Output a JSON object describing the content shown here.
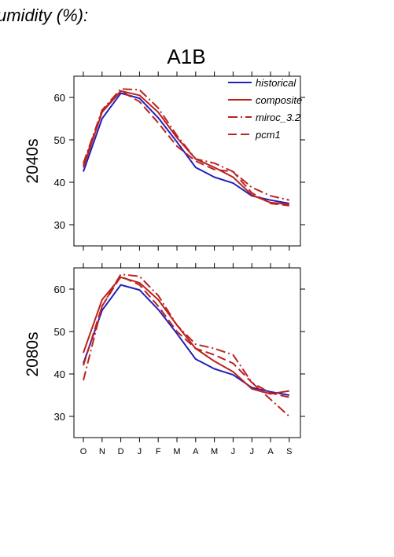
{
  "header": {
    "cut_title": "umidity (%):",
    "scenario_title": "A1B"
  },
  "colors": {
    "historical": "#2222bb",
    "scenario": "#bb2222",
    "axis": "#000000"
  },
  "chart_data": [
    {
      "type": "line",
      "panel_label": "2040s",
      "categories": [
        "O",
        "N",
        "D",
        "J",
        "F",
        "M",
        "A",
        "M",
        "J",
        "J",
        "A",
        "S"
      ],
      "yticks": [
        30,
        40,
        50,
        60
      ],
      "ylim": [
        25,
        65
      ],
      "legend": {
        "placement": "top-right",
        "entries": [
          "historical",
          "composite",
          "miroc_3.2",
          "pcm1"
        ]
      },
      "series": [
        {
          "name": "historical",
          "style": "solid",
          "color": "#2222bb",
          "values": [
            42.5,
            55.0,
            61.0,
            59.8,
            55.2,
            49.5,
            43.5,
            41.2,
            39.8,
            36.8,
            35.8,
            35.0
          ]
        },
        {
          "name": "composite",
          "style": "solid",
          "color": "#bb2222",
          "values": [
            43.5,
            56.5,
            61.5,
            60.5,
            56.5,
            50.5,
            45.5,
            43.5,
            41.2,
            37.0,
            35.2,
            34.8
          ]
        },
        {
          "name": "miroc_3.2",
          "style": "dashdot",
          "color": "#bb2222",
          "values": [
            44.5,
            57.0,
            62.0,
            61.8,
            57.5,
            51.0,
            45.5,
            44.5,
            42.5,
            38.8,
            36.8,
            35.8
          ]
        },
        {
          "name": "pcm1",
          "style": "longdash",
          "color": "#bb2222",
          "values": [
            44.0,
            56.8,
            61.5,
            59.0,
            54.0,
            48.5,
            45.0,
            43.0,
            42.5,
            37.5,
            35.0,
            34.5
          ]
        }
      ]
    },
    {
      "type": "line",
      "panel_label": "2080s",
      "categories": [
        "O",
        "N",
        "D",
        "J",
        "F",
        "M",
        "A",
        "M",
        "J",
        "J",
        "A",
        "S"
      ],
      "yticks": [
        30,
        40,
        50,
        60
      ],
      "ylim": [
        25,
        65
      ],
      "series": [
        {
          "name": "historical",
          "style": "solid",
          "color": "#2222bb",
          "values": [
            42.5,
            55.0,
            61.0,
            59.8,
            55.2,
            49.5,
            43.5,
            41.2,
            39.8,
            36.8,
            35.8,
            35.0
          ]
        },
        {
          "name": "composite",
          "style": "solid",
          "color": "#bb2222",
          "values": [
            45.0,
            57.5,
            62.8,
            61.5,
            57.5,
            51.5,
            46.0,
            43.0,
            40.5,
            36.5,
            35.3,
            36.0
          ]
        },
        {
          "name": "miroc_3.2",
          "style": "dashdot",
          "color": "#bb2222",
          "values": [
            38.5,
            56.0,
            63.5,
            63.0,
            58.5,
            51.5,
            47.0,
            46.0,
            44.5,
            38.0,
            34.0,
            30.0
          ]
        },
        {
          "name": "pcm1",
          "style": "longdash",
          "color": "#bb2222",
          "values": [
            42.0,
            56.0,
            63.0,
            61.0,
            56.0,
            50.0,
            46.0,
            44.5,
            42.5,
            38.0,
            35.5,
            34.5
          ]
        }
      ]
    }
  ]
}
